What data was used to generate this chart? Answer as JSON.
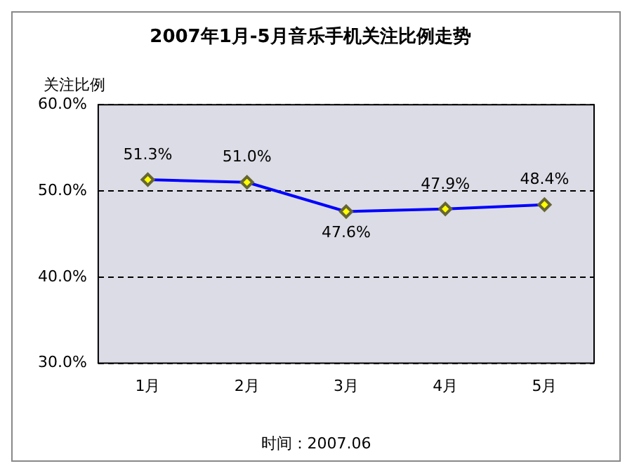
{
  "chart_data": {
    "type": "line",
    "title": "2007年1月-5月音乐手机关注比例走势",
    "ylabel": "关注比例",
    "categories": [
      "1月",
      "2月",
      "3月",
      "4月",
      "5月"
    ],
    "series": [
      {
        "color": "#0000ff",
        "values": [
          51.3,
          51.0,
          47.6,
          47.9,
          48.4
        ],
        "value_labels": [
          "51.3%",
          "51.0%",
          "47.6%",
          "47.9%",
          "48.4%"
        ]
      }
    ],
    "ylim": [
      30,
      60
    ],
    "yticks": [
      {
        "value": 30,
        "label": "30.0%"
      },
      {
        "value": 40,
        "label": "40.0%"
      },
      {
        "value": 50,
        "label": "50.0%"
      },
      {
        "value": 60,
        "label": "60.0%"
      }
    ],
    "grid": "y",
    "marker": "diamond",
    "line_style": "solid",
    "legend": false,
    "annotations": [
      "时间：2007.06"
    ]
  }
}
